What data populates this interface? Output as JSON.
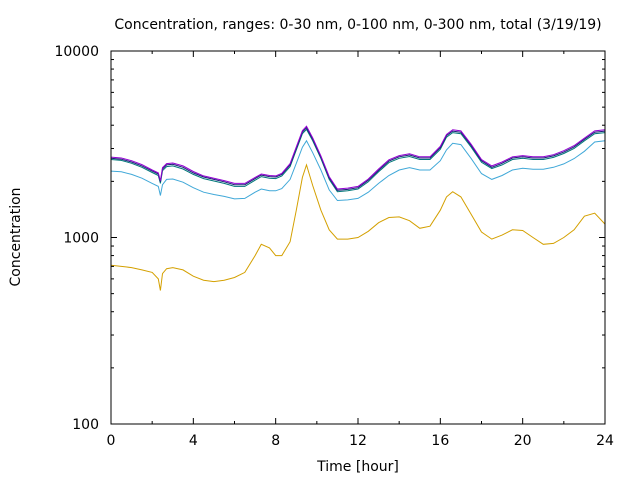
{
  "chart_data": {
    "type": "line",
    "title": "Concentration, ranges: 0-30 nm, 0-100 nm, 0-300 nm, total (3/19/19)",
    "xlabel": "Time [hour]",
    "ylabel": "Concentration",
    "xlim": [
      0,
      24
    ],
    "ylim": [
      100,
      10000
    ],
    "yscale": "log",
    "xticks": [
      0,
      4,
      8,
      12,
      16,
      20,
      24
    ],
    "yticks": [
      100,
      1000,
      10000
    ],
    "xtick_labels": [
      "0",
      "4",
      "8",
      "12",
      "16",
      "20",
      "24"
    ],
    "ytick_labels": [
      "100",
      "1000",
      "10000"
    ],
    "grid": false,
    "legend": "none",
    "series": [
      {
        "color": "#d4a000",
        "x": [
          0,
          0.5,
          1,
          1.5,
          2,
          2.3,
          2.4,
          2.5,
          2.7,
          3,
          3.5,
          4,
          4.5,
          5,
          5.5,
          6,
          6.5,
          7,
          7.3,
          7.7,
          8,
          8.3,
          8.7,
          9,
          9.3,
          9.5,
          9.8,
          10.2,
          10.6,
          11,
          11.5,
          12,
          12.5,
          13,
          13.5,
          14,
          14.5,
          15,
          15.5,
          16,
          16.3,
          16.6,
          17,
          17.5,
          18,
          18.5,
          19,
          19.5,
          20,
          20.5,
          21,
          21.5,
          22,
          22.5,
          23,
          23.5,
          24
        ],
        "values": [
          710,
          700,
          690,
          670,
          650,
          600,
          520,
          640,
          680,
          690,
          670,
          620,
          590,
          580,
          590,
          610,
          650,
          800,
          920,
          880,
          800,
          800,
          950,
          1400,
          2100,
          2450,
          1900,
          1400,
          1100,
          980,
          980,
          1000,
          1080,
          1200,
          1280,
          1290,
          1230,
          1120,
          1150,
          1400,
          1650,
          1760,
          1650,
          1330,
          1070,
          980,
          1030,
          1100,
          1090,
          1000,
          920,
          930,
          1000,
          1100,
          1300,
          1350,
          1180
        ]
      },
      {
        "color": "#40a8d8",
        "x": [
          0,
          0.5,
          1,
          1.5,
          2,
          2.3,
          2.4,
          2.5,
          2.7,
          3,
          3.5,
          4,
          4.5,
          5,
          5.5,
          6,
          6.5,
          7,
          7.3,
          7.7,
          8,
          8.3,
          8.7,
          9,
          9.3,
          9.5,
          9.8,
          10.2,
          10.6,
          11,
          11.5,
          12,
          12.5,
          13,
          13.5,
          14,
          14.5,
          15,
          15.5,
          16,
          16.3,
          16.6,
          17,
          17.5,
          18,
          18.5,
          19,
          19.5,
          20,
          20.5,
          21,
          21.5,
          22,
          22.5,
          23,
          23.5,
          24
        ],
        "values": [
          2270,
          2250,
          2180,
          2080,
          1950,
          1880,
          1680,
          1920,
          2050,
          2060,
          1980,
          1850,
          1750,
          1700,
          1660,
          1610,
          1620,
          1750,
          1820,
          1780,
          1780,
          1830,
          2050,
          2500,
          3050,
          3300,
          2850,
          2300,
          1800,
          1580,
          1590,
          1620,
          1750,
          1950,
          2150,
          2300,
          2370,
          2300,
          2300,
          2580,
          2950,
          3200,
          3150,
          2650,
          2200,
          2050,
          2150,
          2300,
          2350,
          2320,
          2320,
          2380,
          2480,
          2650,
          2900,
          3250,
          3300
        ]
      },
      {
        "color": "#007878",
        "x": [
          0,
          0.5,
          1,
          1.5,
          2,
          2.3,
          2.4,
          2.5,
          2.7,
          3,
          3.5,
          4,
          4.5,
          5,
          5.5,
          6,
          6.5,
          7,
          7.3,
          7.7,
          8,
          8.3,
          8.7,
          9,
          9.3,
          9.5,
          9.8,
          10.2,
          10.6,
          11,
          11.5,
          12,
          12.5,
          13,
          13.5,
          14,
          14.5,
          15,
          15.5,
          16,
          16.3,
          16.6,
          17,
          17.5,
          18,
          18.5,
          19,
          19.5,
          20,
          20.5,
          21,
          21.5,
          22,
          22.5,
          23,
          23.5,
          24
        ],
        "values": [
          2620,
          2590,
          2500,
          2380,
          2230,
          2150,
          1950,
          2280,
          2400,
          2420,
          2330,
          2180,
          2070,
          2010,
          1950,
          1880,
          1880,
          2030,
          2120,
          2080,
          2070,
          2140,
          2400,
          2950,
          3600,
          3800,
          3300,
          2650,
          2050,
          1760,
          1780,
          1820,
          1990,
          2250,
          2520,
          2660,
          2720,
          2620,
          2620,
          2970,
          3450,
          3650,
          3600,
          3050,
          2530,
          2340,
          2450,
          2620,
          2660,
          2620,
          2620,
          2690,
          2820,
          3000,
          3300,
          3600,
          3650
        ]
      },
      {
        "color": "#1c1c78",
        "x": [
          0,
          0.5,
          1,
          1.5,
          2,
          2.3,
          2.4,
          2.5,
          2.7,
          3,
          3.5,
          4,
          4.5,
          5,
          5.5,
          6,
          6.5,
          7,
          7.3,
          7.7,
          8,
          8.3,
          8.7,
          9,
          9.3,
          9.5,
          9.8,
          10.2,
          10.6,
          11,
          11.5,
          12,
          12.5,
          13,
          13.5,
          14,
          14.5,
          15,
          15.5,
          16,
          16.3,
          16.6,
          17,
          17.5,
          18,
          18.5,
          19,
          19.5,
          20,
          20.5,
          21,
          21.5,
          22,
          22.5,
          23,
          23.5,
          24
        ],
        "values": [
          2660,
          2630,
          2540,
          2420,
          2270,
          2190,
          1990,
          2330,
          2450,
          2470,
          2380,
          2220,
          2110,
          2050,
          1990,
          1920,
          1920,
          2070,
          2160,
          2120,
          2110,
          2180,
          2450,
          3010,
          3680,
          3880,
          3370,
          2700,
          2090,
          1790,
          1810,
          1850,
          2030,
          2290,
          2570,
          2710,
          2770,
          2670,
          2670,
          3030,
          3520,
          3720,
          3670,
          3110,
          2580,
          2380,
          2500,
          2670,
          2710,
          2670,
          2670,
          2740,
          2870,
          3060,
          3360,
          3670,
          3720
        ]
      },
      {
        "color": "#9400d3",
        "x": [
          0,
          0.5,
          1,
          1.5,
          2,
          2.3,
          2.4,
          2.5,
          2.7,
          3,
          3.5,
          4,
          4.5,
          5,
          5.5,
          6,
          6.5,
          7,
          7.3,
          7.7,
          8,
          8.3,
          8.7,
          9,
          9.3,
          9.5,
          9.8,
          10.2,
          10.6,
          11,
          11.5,
          12,
          12.5,
          13,
          13.5,
          14,
          14.5,
          15,
          15.5,
          16,
          16.3,
          16.6,
          17,
          17.5,
          18,
          18.5,
          19,
          19.5,
          20,
          20.5,
          21,
          21.5,
          22,
          22.5,
          23,
          23.5,
          24
        ],
        "values": [
          2700,
          2670,
          2580,
          2460,
          2300,
          2220,
          2020,
          2370,
          2490,
          2510,
          2420,
          2260,
          2140,
          2080,
          2020,
          1950,
          1950,
          2100,
          2190,
          2150,
          2140,
          2210,
          2490,
          3060,
          3740,
          3950,
          3420,
          2740,
          2120,
          1820,
          1840,
          1880,
          2060,
          2330,
          2610,
          2750,
          2810,
          2710,
          2710,
          3080,
          3570,
          3780,
          3730,
          3160,
          2620,
          2420,
          2540,
          2710,
          2750,
          2710,
          2710,
          2780,
          2920,
          3110,
          3410,
          3730,
          3780
        ]
      }
    ]
  }
}
